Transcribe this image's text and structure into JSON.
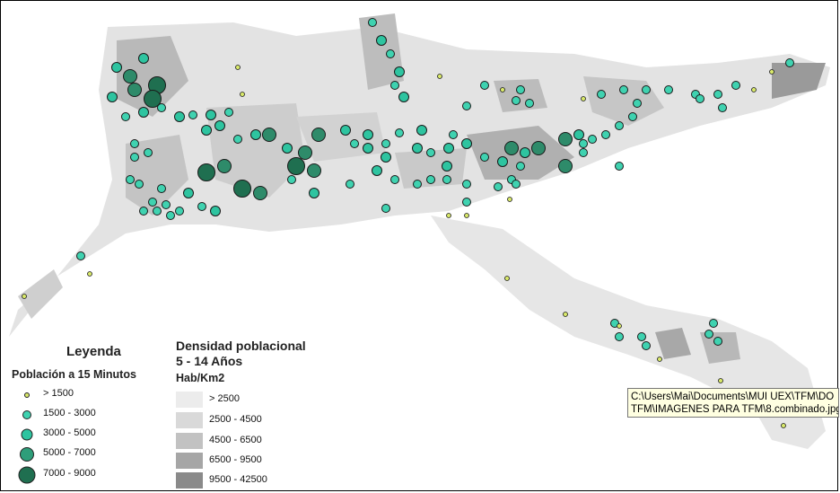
{
  "map": {
    "colors": {
      "urban_base": "#e3e3e3",
      "point_fill": "#2ec4a0",
      "point_small": "#3fd2b0",
      "point_dark": "#2e8b6a",
      "point_darkest": "#1f6f50",
      "point_tiny": "#d8e86a",
      "outline": "#1a1a1a"
    }
  },
  "legend": {
    "title": "Leyenda",
    "points_title": "Población a 15 Minutos",
    "points": [
      {
        "label": "> 1500",
        "color": "#d8e86a"
      },
      {
        "label": "1500 - 3000",
        "color": "#3fd2b0"
      },
      {
        "label": "3000 - 5000",
        "color": "#2ec4a0"
      },
      {
        "label": "5000 - 7000",
        "color": "#2e9e7a"
      },
      {
        "label": "7000 - 9000",
        "color": "#1f6f50"
      }
    ],
    "density_title_line1": "Densidad poblacional",
    "density_title_line2": "5 - 14 Años",
    "density_unit": "Hab/Km2",
    "density": [
      {
        "label": "> 2500",
        "color": "#ececec"
      },
      {
        "label": "2500 - 4500",
        "color": "#d9d9d9"
      },
      {
        "label": "4500 - 6500",
        "color": "#c2c2c2"
      },
      {
        "label": "6500 - 9500",
        "color": "#a6a6a6"
      },
      {
        "label": "9500 - 42500",
        "color": "#8a8a8a"
      }
    ]
  },
  "tooltip": {
    "line1": "C:\\Users\\Mai\\Documents\\MUI UEX\\TFM\\DO",
    "line2": "TFM\\IMAGENES PARA TFM\\8.combinado.jpg"
  }
}
